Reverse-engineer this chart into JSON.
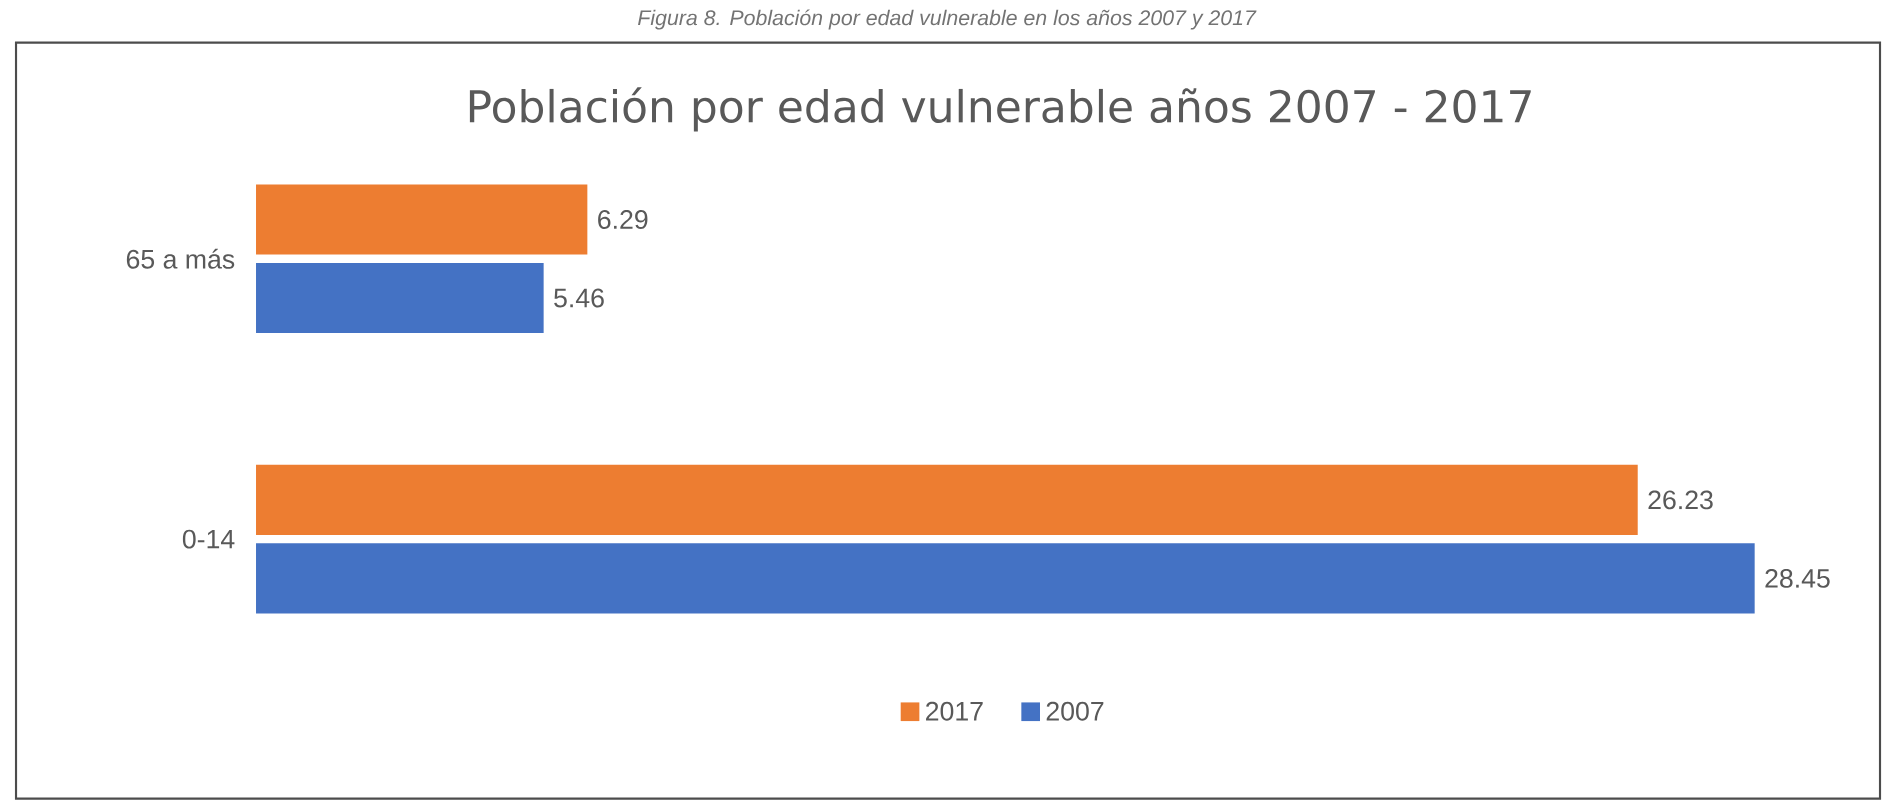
{
  "chart_data": {
    "type": "bar",
    "orientation": "horizontal",
    "title": "Población por edad vulnerable años 2007 - 2017",
    "annotations": [
      "Figura 8. Población por edad vulnerable en los años 2007 y 2017"
    ],
    "categories": [
      "65 a más",
      "0-14"
    ],
    "series": [
      {
        "name": "2017",
        "color": "#ed7d31",
        "values": [
          6.29,
          26.23
        ]
      },
      {
        "name": "2007",
        "color": "#4472c4",
        "values": [
          5.46,
          28.45
        ]
      }
    ],
    "data_labels": true,
    "legend": "bottom",
    "tick_labels": "y",
    "grid": false
  }
}
